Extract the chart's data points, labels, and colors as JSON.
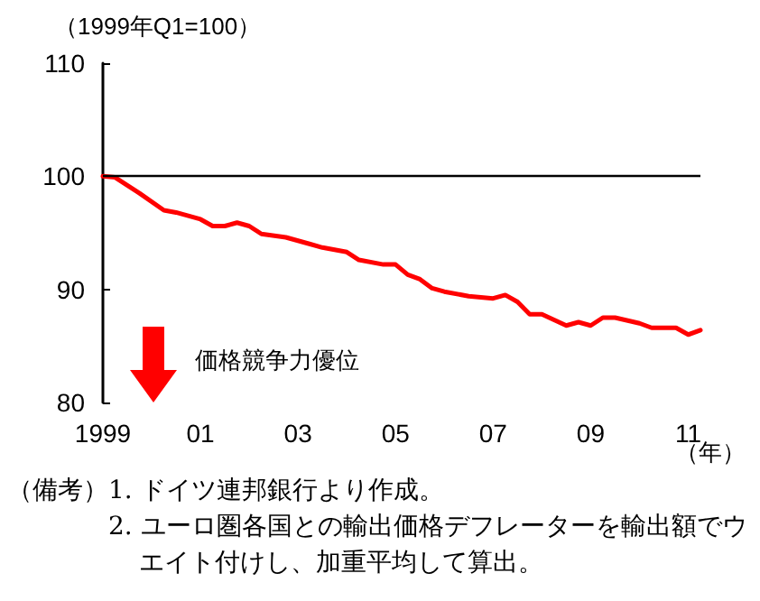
{
  "chart_data": {
    "type": "line",
    "ylabel": "（1999年Q1=100）",
    "xlabel": "（年）",
    "annotations": [
      "価格競争力優位",
      "（備考）1. ドイツ連邦銀行より作成。",
      "2. ユーロ圏各国との輸出価格デフレーターを輸出額でウエイト付けし、加重平均して算出。"
    ],
    "series": [
      {
        "color": "#ff0000",
        "x": [
          1999,
          1999.25,
          1999.75,
          2000.25,
          2000.5,
          2001,
          2001.25,
          2001.5,
          2001.75,
          2002,
          2002.25,
          2002.75,
          2003.25,
          2003.5,
          2004,
          2004.25,
          2004.75,
          2005,
          2005.25,
          2005.5,
          2005.75,
          2006,
          2006.5,
          2007,
          2007.25,
          2007.5,
          2007.75,
          2008,
          2008.25,
          2008.5,
          2008.75,
          2009,
          2009.25,
          2009.5,
          2010,
          2010.25,
          2010.75,
          2011,
          2011.25
        ],
        "values": [
          100,
          99.9,
          98.5,
          97.0,
          96.8,
          96.2,
          95.6,
          95.6,
          95.9,
          95.6,
          94.9,
          94.6,
          94.0,
          93.7,
          93.3,
          92.6,
          92.2,
          92.2,
          91.3,
          90.9,
          90.1,
          89.8,
          89.4,
          89.2,
          89.5,
          88.9,
          87.8,
          87.8,
          87.3,
          86.8,
          87.1,
          86.8,
          87.5,
          87.5,
          87.0,
          86.6,
          86.6,
          86.0,
          86.4
        ]
      }
    ],
    "xlim": [
      1999,
      2011.25
    ],
    "xticks": [
      {
        "value": 1999,
        "label": "1999"
      },
      {
        "value": 2001,
        "label": "01"
      },
      {
        "value": 2003,
        "label": "03"
      },
      {
        "value": 2005,
        "label": "05"
      },
      {
        "value": 2007,
        "label": "07"
      },
      {
        "value": 2009,
        "label": "09"
      },
      {
        "value": 2011,
        "label": "11"
      }
    ],
    "ylim": [
      80,
      110
    ],
    "yticks": [
      80,
      90,
      100,
      110
    ],
    "ref_lines": [
      {
        "axis": "y",
        "value": 100,
        "color": "#000000"
      }
    ],
    "grid": false,
    "marker": "none",
    "line_style": "solid"
  }
}
